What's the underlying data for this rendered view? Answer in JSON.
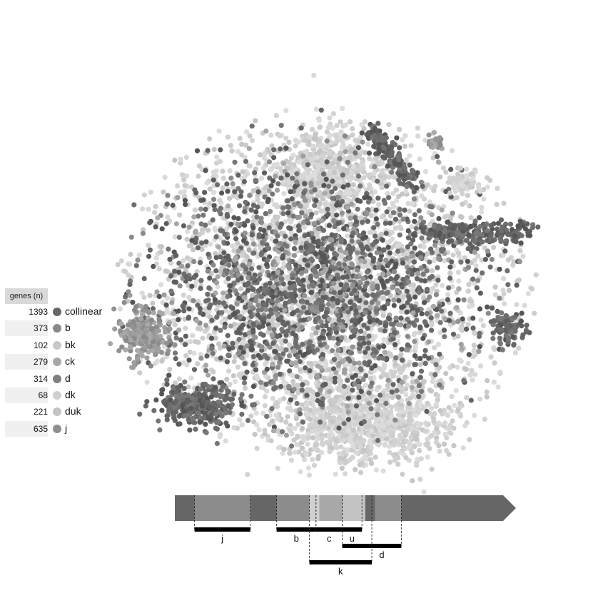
{
  "chart_data": {
    "type": "scatter",
    "title": "",
    "legend": {
      "header": "genes (n)",
      "placement": "left",
      "entries": [
        {
          "name": "collinear",
          "count": "1393",
          "color": "#666666"
        },
        {
          "name": "b",
          "count": "373",
          "color": "#8a8a8a"
        },
        {
          "name": "bk",
          "count": "102",
          "color": "#c8c8c8"
        },
        {
          "name": "ck",
          "count": "279",
          "color": "#a8a8a8"
        },
        {
          "name": "d",
          "count": "314",
          "color": "#7f7f7f"
        },
        {
          "name": "dk",
          "count": "68",
          "color": "#cfcfcf"
        },
        {
          "name": "duk",
          "count": "221",
          "color": "#c4c4c4"
        },
        {
          "name": "j",
          "count": "635",
          "color": "#8f8f8f"
        }
      ]
    },
    "gene_diagram": {
      "segments": [
        {
          "color": "#666666",
          "start": 0,
          "end": 0.06
        },
        {
          "color": "#8c8c8c",
          "start": 0.06,
          "end": 0.23
        },
        {
          "color": "#666666",
          "start": 0.23,
          "end": 0.31
        },
        {
          "color": "#8c8c8c",
          "start": 0.31,
          "end": 0.41
        },
        {
          "color": "#d0d0d0",
          "start": 0.41,
          "end": 0.44
        },
        {
          "color": "#a8a8a8",
          "start": 0.44,
          "end": 0.51
        },
        {
          "color": "#c4c4c4",
          "start": 0.51,
          "end": 0.58
        },
        {
          "color": "#666666",
          "start": 0.58,
          "end": 0.61
        },
        {
          "color": "#8c8c8c",
          "start": 0.61,
          "end": 0.69
        },
        {
          "color": "#666666",
          "start": 0.69,
          "end": 1.0
        }
      ],
      "exons": [
        {
          "label": "j",
          "start": 0.06,
          "end": 0.23,
          "row": 0
        },
        {
          "label": "b",
          "start": 0.31,
          "end": 0.43,
          "row": 0
        },
        {
          "label": "c",
          "start": 0.43,
          "end": 0.51,
          "row": 0
        },
        {
          "label": "u",
          "start": 0.51,
          "end": 0.57,
          "row": 0
        },
        {
          "label": "d",
          "start": 0.51,
          "end": 0.69,
          "row": 1
        },
        {
          "label": "k",
          "start": 0.41,
          "end": 0.6,
          "row": 2
        }
      ]
    }
  }
}
